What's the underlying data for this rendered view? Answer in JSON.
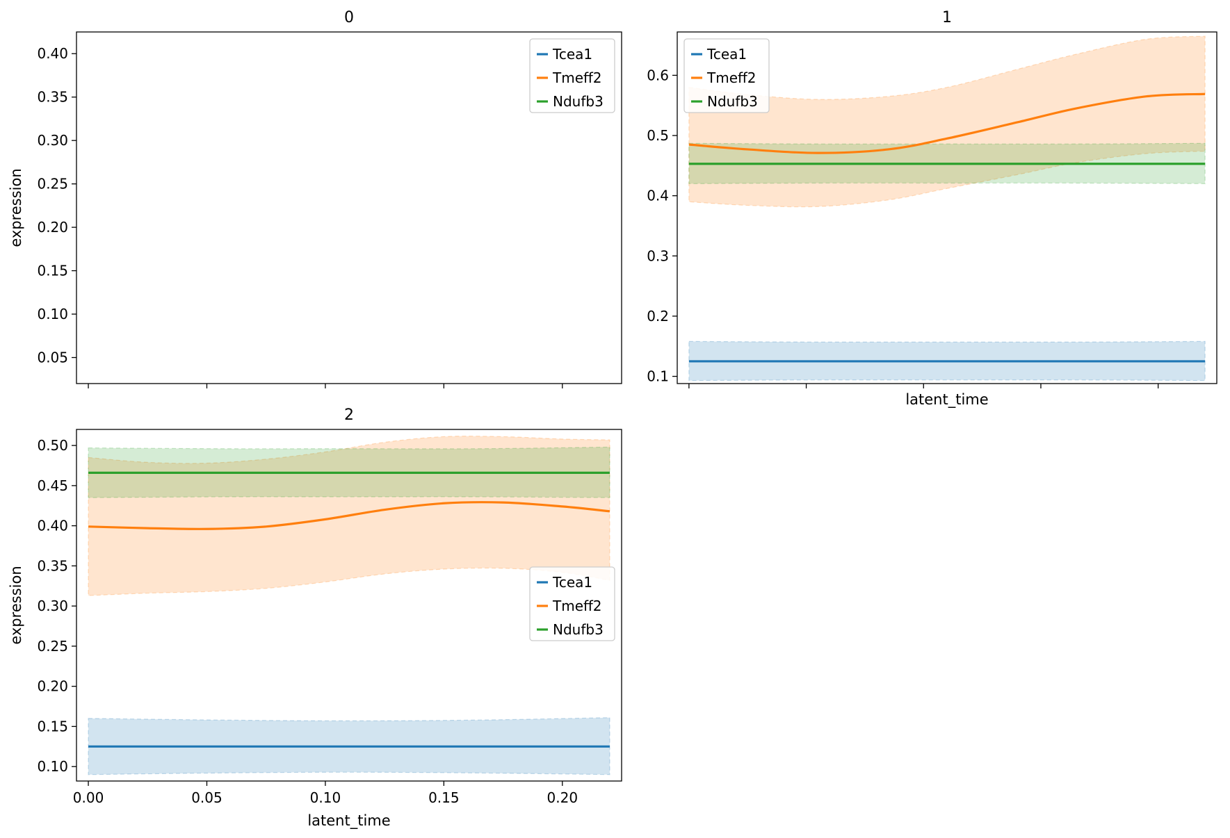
{
  "chart_data": [
    {
      "type": "line",
      "title": "0",
      "xlabel": "",
      "ylabel": "expression",
      "xlim": [
        -0.005,
        0.225
      ],
      "ylim": [
        0.02,
        0.425
      ],
      "xticks": [
        0.0,
        0.05,
        0.1,
        0.15,
        0.2
      ],
      "xticklabels": [],
      "yticks": [
        0.05,
        0.1,
        0.15,
        0.2,
        0.25,
        0.3,
        0.35,
        0.4
      ],
      "yticklabels": [
        "0.05",
        "0.10",
        "0.15",
        "0.20",
        "0.25",
        "0.30",
        "0.35",
        "0.40"
      ],
      "legend": "top-right",
      "series": [
        {
          "name": "Tcea1",
          "color": "#1f77b4",
          "x": [],
          "y": [],
          "lower": [],
          "upper": []
        },
        {
          "name": "Tmeff2",
          "color": "#ff7f0e",
          "x": [],
          "y": [],
          "lower": [],
          "upper": []
        },
        {
          "name": "Ndufb3",
          "color": "#2ca02c",
          "x": [],
          "y": [],
          "lower": [],
          "upper": []
        }
      ]
    },
    {
      "type": "line",
      "title": "1",
      "xlabel": "latent_time",
      "ylabel": "",
      "xlim": [
        -0.005,
        0.225
      ],
      "ylim": [
        0.088,
        0.672
      ],
      "xticks": [
        0.0,
        0.05,
        0.1,
        0.15,
        0.2
      ],
      "xticklabels": [],
      "yticks": [
        0.1,
        0.2,
        0.3,
        0.4,
        0.5,
        0.6
      ],
      "yticklabels": [
        "0.1",
        "0.2",
        "0.3",
        "0.4",
        "0.5",
        "0.6"
      ],
      "legend": "top-left",
      "series": [
        {
          "name": "Tcea1",
          "color": "#1f77b4",
          "x": [
            0.0,
            0.055,
            0.11,
            0.165,
            0.22
          ],
          "y": [
            0.125,
            0.125,
            0.125,
            0.125,
            0.125
          ],
          "lower": [
            0.093,
            0.094,
            0.094,
            0.094,
            0.093
          ],
          "upper": [
            0.158,
            0.157,
            0.157,
            0.157,
            0.158
          ]
        },
        {
          "name": "Tmeff2",
          "color": "#ff7f0e",
          "x": [
            0.0,
            0.025,
            0.055,
            0.085,
            0.11,
            0.14,
            0.165,
            0.195,
            0.22
          ],
          "y": [
            0.485,
            0.477,
            0.471,
            0.477,
            0.495,
            0.522,
            0.545,
            0.565,
            0.569
          ],
          "lower": [
            0.39,
            0.384,
            0.382,
            0.393,
            0.412,
            0.435,
            0.455,
            0.47,
            0.474
          ],
          "upper": [
            0.58,
            0.568,
            0.56,
            0.565,
            0.58,
            0.61,
            0.635,
            0.66,
            0.665
          ]
        },
        {
          "name": "Ndufb3",
          "color": "#2ca02c",
          "x": [
            0.0,
            0.055,
            0.11,
            0.165,
            0.22
          ],
          "y": [
            0.453,
            0.453,
            0.453,
            0.453,
            0.453
          ],
          "lower": [
            0.42,
            0.421,
            0.421,
            0.421,
            0.42
          ],
          "upper": [
            0.487,
            0.486,
            0.486,
            0.486,
            0.487
          ]
        }
      ]
    },
    {
      "type": "line",
      "title": "2",
      "xlabel": "latent_time",
      "ylabel": "expression",
      "xlim": [
        -0.005,
        0.225
      ],
      "ylim": [
        0.082,
        0.52
      ],
      "xticks": [
        0.0,
        0.05,
        0.1,
        0.15,
        0.2
      ],
      "xticklabels": [
        "0.00",
        "0.05",
        "0.10",
        "0.15",
        "0.20"
      ],
      "yticks": [
        0.1,
        0.15,
        0.2,
        0.25,
        0.3,
        0.35,
        0.4,
        0.45,
        0.5
      ],
      "yticklabels": [
        "0.10",
        "0.15",
        "0.20",
        "0.25",
        "0.30",
        "0.35",
        "0.40",
        "0.45",
        "0.50"
      ],
      "legend": "center-right",
      "series": [
        {
          "name": "Tcea1",
          "color": "#1f77b4",
          "x": [
            0.0,
            0.055,
            0.11,
            0.165,
            0.22
          ],
          "y": [
            0.125,
            0.125,
            0.125,
            0.125,
            0.125
          ],
          "lower": [
            0.09,
            0.092,
            0.093,
            0.092,
            0.09
          ],
          "upper": [
            0.16,
            0.158,
            0.157,
            0.158,
            0.161
          ]
        },
        {
          "name": "Tmeff2",
          "color": "#ff7f0e",
          "x": [
            0.0,
            0.025,
            0.05,
            0.075,
            0.1,
            0.125,
            0.15,
            0.175,
            0.2,
            0.22
          ],
          "y": [
            0.399,
            0.397,
            0.396,
            0.399,
            0.408,
            0.42,
            0.428,
            0.429,
            0.424,
            0.418
          ],
          "lower": [
            0.313,
            0.316,
            0.318,
            0.322,
            0.33,
            0.34,
            0.346,
            0.347,
            0.342,
            0.332
          ],
          "upper": [
            0.485,
            0.479,
            0.478,
            0.483,
            0.492,
            0.504,
            0.511,
            0.511,
            0.508,
            0.507
          ]
        },
        {
          "name": "Ndufb3",
          "color": "#2ca02c",
          "x": [
            0.0,
            0.055,
            0.11,
            0.165,
            0.22
          ],
          "y": [
            0.466,
            0.466,
            0.466,
            0.466,
            0.466
          ],
          "lower": [
            0.435,
            0.436,
            0.436,
            0.436,
            0.435
          ],
          "upper": [
            0.497,
            0.496,
            0.496,
            0.496,
            0.498
          ]
        }
      ]
    }
  ]
}
